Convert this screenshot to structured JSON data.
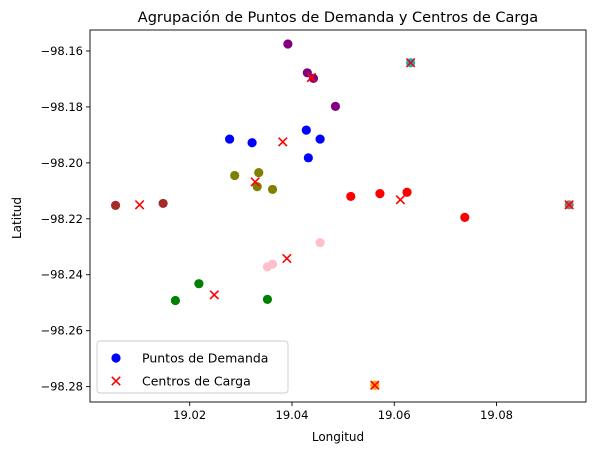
{
  "chart_data": {
    "type": "scatter",
    "title": "Agrupación de Puntos de Demanda y Centros de Carga",
    "xlabel": "Longitud",
    "ylabel": "Latitud",
    "xlim": [
      19.0005,
      19.0975
    ],
    "ylim": [
      -98.2855,
      -98.1525
    ],
    "x_ticks": [
      19.02,
      19.04,
      19.06,
      19.08
    ],
    "y_ticks": [
      -98.16,
      -98.18,
      -98.2,
      -98.22,
      -98.24,
      -98.26,
      -98.28
    ],
    "x_tick_labels": [
      "19.02",
      "19.04",
      "19.06",
      "19.08"
    ],
    "y_tick_labels": [
      "−98.16",
      "−98.18",
      "−98.20",
      "−98.22",
      "−98.24",
      "−98.26",
      "−98.28"
    ],
    "grid": false,
    "legend_position": "bottom-left",
    "series": [
      {
        "name": "Puntos de Demanda",
        "marker": "circle",
        "legend_color": "#0000ff",
        "points": [
          {
            "x": 19.0278,
            "y": -98.1915,
            "color": "#0000ff"
          },
          {
            "x": 19.0322,
            "y": -98.1928,
            "color": "#0000ff"
          },
          {
            "x": 19.0428,
            "y": -98.1883,
            "color": "#0000ff"
          },
          {
            "x": 19.0455,
            "y": -98.1915,
            "color": "#0000ff"
          },
          {
            "x": 19.0432,
            "y": -98.1982,
            "color": "#0000ff"
          },
          {
            "x": 19.0392,
            "y": -98.1575,
            "color": "#800080"
          },
          {
            "x": 19.043,
            "y": -98.1678,
            "color": "#800080"
          },
          {
            "x": 19.0442,
            "y": -98.1698,
            "color": "#800080"
          },
          {
            "x": 19.0485,
            "y": -98.1798,
            "color": "#800080"
          },
          {
            "x": 19.0632,
            "y": -98.1642,
            "color": "#00bfbf"
          },
          {
            "x": 19.0288,
            "y": -98.2045,
            "color": "#808000"
          },
          {
            "x": 19.0335,
            "y": -98.2035,
            "color": "#808000"
          },
          {
            "x": 19.0332,
            "y": -98.2085,
            "color": "#808000"
          },
          {
            "x": 19.0362,
            "y": -98.2095,
            "color": "#808000"
          },
          {
            "x": 19.0055,
            "y": -98.2152,
            "color": "#a52a2a"
          },
          {
            "x": 19.0148,
            "y": -98.2145,
            "color": "#a52a2a"
          },
          {
            "x": 19.0515,
            "y": -98.212,
            "color": "#ff0000"
          },
          {
            "x": 19.0572,
            "y": -98.211,
            "color": "#ff0000"
          },
          {
            "x": 19.0625,
            "y": -98.2105,
            "color": "#ff0000"
          },
          {
            "x": 19.0738,
            "y": -98.2195,
            "color": "#ff0000"
          },
          {
            "x": 19.0942,
            "y": -98.215,
            "color": "#808080"
          },
          {
            "x": 19.0455,
            "y": -98.2285,
            "color": "#ffc0cb"
          },
          {
            "x": 19.0352,
            "y": -98.2372,
            "color": "#ffc0cb"
          },
          {
            "x": 19.0362,
            "y": -98.2362,
            "color": "#ffc0cb"
          },
          {
            "x": 19.0218,
            "y": -98.2432,
            "color": "#008000"
          },
          {
            "x": 19.0172,
            "y": -98.2492,
            "color": "#008000"
          },
          {
            "x": 19.0352,
            "y": -98.2488,
            "color": "#008000"
          },
          {
            "x": 19.0562,
            "y": -98.2795,
            "color": "#ffa500"
          }
        ]
      },
      {
        "name": "Centros de Carga",
        "marker": "x",
        "legend_color": "#ff0000",
        "points": [
          {
            "x": 19.0632,
            "y": -98.1642,
            "color": "#ff0000"
          },
          {
            "x": 19.0438,
            "y": -98.1695,
            "color": "#ff0000"
          },
          {
            "x": 19.0382,
            "y": -98.1925,
            "color": "#ff0000"
          },
          {
            "x": 19.0328,
            "y": -98.2068,
            "color": "#ff0000"
          },
          {
            "x": 19.0102,
            "y": -98.215,
            "color": "#ff0000"
          },
          {
            "x": 19.0612,
            "y": -98.2132,
            "color": "#ff0000"
          },
          {
            "x": 19.0942,
            "y": -98.215,
            "color": "#ff0000"
          },
          {
            "x": 19.039,
            "y": -98.2342,
            "color": "#ff0000"
          },
          {
            "x": 19.0248,
            "y": -98.2472,
            "color": "#ff0000"
          },
          {
            "x": 19.0562,
            "y": -98.2795,
            "color": "#ff0000"
          }
        ]
      }
    ]
  }
}
